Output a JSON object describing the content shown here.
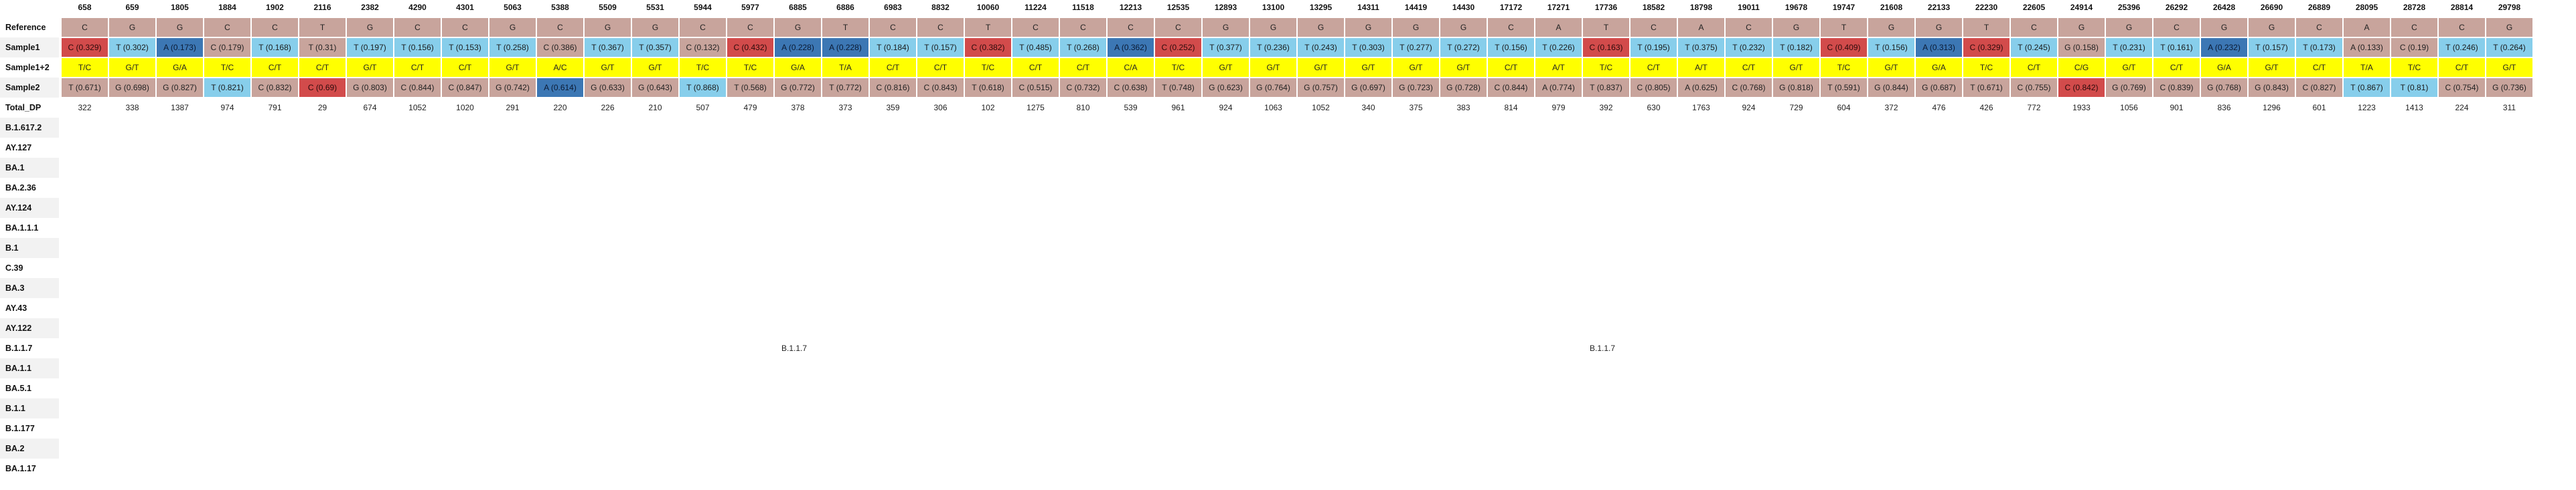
{
  "row_labels": {
    "reference": "Reference",
    "sample1": "Sample1",
    "sample12": "Sample1+2",
    "sample2": "Sample2",
    "total_dp": "Total_DP"
  },
  "lineage_labels": [
    "B.1.617.2",
    "AY.127",
    "BA.1",
    "BA.2.36",
    "AY.124",
    "BA.1.1.1",
    "B.1",
    "C.39",
    "BA.3",
    "AY.43",
    "AY.122",
    "B.1.1.7",
    "BA.1.1",
    "BA.5.1",
    "B.1.1",
    "B.1.177",
    "BA.2",
    "BA.1.17"
  ],
  "lineage_row_annotations": [
    {
      "row": "B.1.1.7",
      "col": 15,
      "text": "B.1.1.7"
    },
    {
      "row": "B.1.1.7",
      "col": 32,
      "text": "B.1.1.7"
    }
  ],
  "palette": {
    "ref_tan": "#c8a49c",
    "light_blue": "#87ceeb",
    "dark_blue": "#3c77b4",
    "red": "#d24b4b",
    "yellow": "#ffff00"
  },
  "columns": [
    {
      "pos": "658",
      "ref": "C",
      "s1": "C (0.329)",
      "s1c": "rd",
      "s12": "T/C",
      "s2": "T (0.671)",
      "s2c": "tan",
      "dp": "322"
    },
    {
      "pos": "659",
      "ref": "G",
      "s1": "T (0.302)",
      "s1c": "lb",
      "s12": "G/T",
      "s2": "G (0.698)",
      "s2c": "tan",
      "dp": "338"
    },
    {
      "pos": "1805",
      "ref": "G",
      "s1": "A (0.173)",
      "s1c": "db",
      "s12": "G/A",
      "s2": "G (0.827)",
      "s2c": "tan",
      "dp": "1387"
    },
    {
      "pos": "1884",
      "ref": "C",
      "s1": "C (0.179)",
      "s1c": "tan",
      "s12": "T/C",
      "s2": "T (0.821)",
      "s2c": "lb",
      "dp": "974"
    },
    {
      "pos": "1902",
      "ref": "C",
      "s1": "T (0.168)",
      "s1c": "lb",
      "s12": "C/T",
      "s2": "C (0.832)",
      "s2c": "tan",
      "dp": "791"
    },
    {
      "pos": "2116",
      "ref": "T",
      "s1": "T (0.31)",
      "s1c": "tan",
      "s12": "C/T",
      "s2": "C (0.69)",
      "s2c": "rd",
      "dp": "29"
    },
    {
      "pos": "2382",
      "ref": "G",
      "s1": "T (0.197)",
      "s1c": "lb",
      "s12": "G/T",
      "s2": "G (0.803)",
      "s2c": "tan",
      "dp": "674"
    },
    {
      "pos": "4290",
      "ref": "C",
      "s1": "T (0.156)",
      "s1c": "lb",
      "s12": "C/T",
      "s2": "C (0.844)",
      "s2c": "tan",
      "dp": "1052"
    },
    {
      "pos": "4301",
      "ref": "C",
      "s1": "T (0.153)",
      "s1c": "lb",
      "s12": "C/T",
      "s2": "C (0.847)",
      "s2c": "tan",
      "dp": "1020"
    },
    {
      "pos": "5063",
      "ref": "G",
      "s1": "T (0.258)",
      "s1c": "lb",
      "s12": "G/T",
      "s2": "G (0.742)",
      "s2c": "tan",
      "dp": "291"
    },
    {
      "pos": "5388",
      "ref": "C",
      "s1": "C (0.386)",
      "s1c": "tan",
      "s12": "A/C",
      "s2": "A (0.614)",
      "s2c": "db",
      "dp": "220"
    },
    {
      "pos": "5509",
      "ref": "G",
      "s1": "T (0.367)",
      "s1c": "lb",
      "s12": "G/T",
      "s2": "G (0.633)",
      "s2c": "tan",
      "dp": "226"
    },
    {
      "pos": "5531",
      "ref": "G",
      "s1": "T (0.357)",
      "s1c": "lb",
      "s12": "G/T",
      "s2": "G (0.643)",
      "s2c": "tan",
      "dp": "210"
    },
    {
      "pos": "5944",
      "ref": "C",
      "s1": "C (0.132)",
      "s1c": "tan",
      "s12": "T/C",
      "s2": "T (0.868)",
      "s2c": "lb",
      "dp": "507"
    },
    {
      "pos": "5977",
      "ref": "C",
      "s1": "C (0.432)",
      "s1c": "rd",
      "s12": "T/C",
      "s2": "T (0.568)",
      "s2c": "tan",
      "dp": "479"
    },
    {
      "pos": "6885",
      "ref": "G",
      "s1": "A (0.228)",
      "s1c": "db",
      "s12": "G/A",
      "s2": "G (0.772)",
      "s2c": "tan",
      "dp": "378"
    },
    {
      "pos": "6886",
      "ref": "T",
      "s1": "A (0.228)",
      "s1c": "db",
      "s12": "T/A",
      "s2": "T (0.772)",
      "s2c": "tan",
      "dp": "373"
    },
    {
      "pos": "6983",
      "ref": "C",
      "s1": "T (0.184)",
      "s1c": "lb",
      "s12": "C/T",
      "s2": "C (0.816)",
      "s2c": "tan",
      "dp": "359"
    },
    {
      "pos": "8832",
      "ref": "C",
      "s1": "T (0.157)",
      "s1c": "lb",
      "s12": "C/T",
      "s2": "C (0.843)",
      "s2c": "tan",
      "dp": "306"
    },
    {
      "pos": "10060",
      "ref": "T",
      "s1": "C (0.382)",
      "s1c": "rd",
      "s12": "T/C",
      "s2": "T (0.618)",
      "s2c": "tan",
      "dp": "102"
    },
    {
      "pos": "11224",
      "ref": "C",
      "s1": "T (0.485)",
      "s1c": "lb",
      "s12": "C/T",
      "s2": "C (0.515)",
      "s2c": "tan",
      "dp": "1275"
    },
    {
      "pos": "11518",
      "ref": "C",
      "s1": "T (0.268)",
      "s1c": "lb",
      "s12": "C/T",
      "s2": "C (0.732)",
      "s2c": "tan",
      "dp": "810"
    },
    {
      "pos": "12213",
      "ref": "C",
      "s1": "A (0.362)",
      "s1c": "db",
      "s12": "C/A",
      "s2": "C (0.638)",
      "s2c": "tan",
      "dp": "539"
    },
    {
      "pos": "12535",
      "ref": "C",
      "s1": "C (0.252)",
      "s1c": "rd",
      "s12": "T/C",
      "s2": "T (0.748)",
      "s2c": "tan",
      "dp": "961"
    },
    {
      "pos": "12893",
      "ref": "G",
      "s1": "T (0.377)",
      "s1c": "lb",
      "s12": "G/T",
      "s2": "G (0.623)",
      "s2c": "tan",
      "dp": "924"
    },
    {
      "pos": "13100",
      "ref": "G",
      "s1": "T (0.236)",
      "s1c": "lb",
      "s12": "G/T",
      "s2": "G (0.764)",
      "s2c": "tan",
      "dp": "1063"
    },
    {
      "pos": "13295",
      "ref": "G",
      "s1": "T (0.243)",
      "s1c": "lb",
      "s12": "G/T",
      "s2": "G (0.757)",
      "s2c": "tan",
      "dp": "1052"
    },
    {
      "pos": "14311",
      "ref": "G",
      "s1": "T (0.303)",
      "s1c": "lb",
      "s12": "G/T",
      "s2": "G (0.697)",
      "s2c": "tan",
      "dp": "340"
    },
    {
      "pos": "14419",
      "ref": "G",
      "s1": "T (0.277)",
      "s1c": "lb",
      "s12": "G/T",
      "s2": "G (0.723)",
      "s2c": "tan",
      "dp": "375"
    },
    {
      "pos": "14430",
      "ref": "G",
      "s1": "T (0.272)",
      "s1c": "lb",
      "s12": "G/T",
      "s2": "G (0.728)",
      "s2c": "tan",
      "dp": "383"
    },
    {
      "pos": "17172",
      "ref": "C",
      "s1": "T (0.156)",
      "s1c": "lb",
      "s12": "C/T",
      "s2": "C (0.844)",
      "s2c": "tan",
      "dp": "814"
    },
    {
      "pos": "17271",
      "ref": "A",
      "s1": "T (0.226)",
      "s1c": "lb",
      "s12": "A/T",
      "s2": "A (0.774)",
      "s2c": "tan",
      "dp": "979"
    },
    {
      "pos": "17736",
      "ref": "T",
      "s1": "C (0.163)",
      "s1c": "rd",
      "s12": "T/C",
      "s2": "T (0.837)",
      "s2c": "tan",
      "dp": "392"
    },
    {
      "pos": "18582",
      "ref": "C",
      "s1": "T (0.195)",
      "s1c": "lb",
      "s12": "C/T",
      "s2": "C (0.805)",
      "s2c": "tan",
      "dp": "630"
    },
    {
      "pos": "18798",
      "ref": "A",
      "s1": "T (0.375)",
      "s1c": "lb",
      "s12": "A/T",
      "s2": "A (0.625)",
      "s2c": "tan",
      "dp": "1763"
    },
    {
      "pos": "19011",
      "ref": "C",
      "s1": "T (0.232)",
      "s1c": "lb",
      "s12": "C/T",
      "s2": "C (0.768)",
      "s2c": "tan",
      "dp": "924"
    },
    {
      "pos": "19678",
      "ref": "G",
      "s1": "T (0.182)",
      "s1c": "lb",
      "s12": "G/T",
      "s2": "G (0.818)",
      "s2c": "tan",
      "dp": "729"
    },
    {
      "pos": "19747",
      "ref": "T",
      "s1": "C (0.409)",
      "s1c": "rd",
      "s12": "T/C",
      "s2": "T (0.591)",
      "s2c": "tan",
      "dp": "604"
    },
    {
      "pos": "21608",
      "ref": "G",
      "s1": "T (0.156)",
      "s1c": "lb",
      "s12": "G/T",
      "s2": "G (0.844)",
      "s2c": "tan",
      "dp": "372"
    },
    {
      "pos": "22133",
      "ref": "G",
      "s1": "A (0.313)",
      "s1c": "db",
      "s12": "G/A",
      "s2": "G (0.687)",
      "s2c": "tan",
      "dp": "476"
    },
    {
      "pos": "22230",
      "ref": "T",
      "s1": "C (0.329)",
      "s1c": "rd",
      "s12": "T/C",
      "s2": "T (0.671)",
      "s2c": "tan",
      "dp": "426"
    },
    {
      "pos": "22605",
      "ref": "C",
      "s1": "T (0.245)",
      "s1c": "lb",
      "s12": "C/T",
      "s2": "C (0.755)",
      "s2c": "tan",
      "dp": "772"
    },
    {
      "pos": "24914",
      "ref": "G",
      "s1": "G (0.158)",
      "s1c": "tan",
      "s12": "C/G",
      "s2": "C (0.842)",
      "s2c": "rd",
      "dp": "1933"
    },
    {
      "pos": "25396",
      "ref": "G",
      "s1": "T (0.231)",
      "s1c": "lb",
      "s12": "G/T",
      "s2": "G (0.769)",
      "s2c": "tan",
      "dp": "1056"
    },
    {
      "pos": "26292",
      "ref": "C",
      "s1": "T (0.161)",
      "s1c": "lb",
      "s12": "C/T",
      "s2": "C (0.839)",
      "s2c": "tan",
      "dp": "901"
    },
    {
      "pos": "26428",
      "ref": "G",
      "s1": "A (0.232)",
      "s1c": "db",
      "s12": "G/A",
      "s2": "G (0.768)",
      "s2c": "tan",
      "dp": "836"
    },
    {
      "pos": "26690",
      "ref": "G",
      "s1": "T (0.157)",
      "s1c": "lb",
      "s12": "G/T",
      "s2": "G (0.843)",
      "s2c": "tan",
      "dp": "1296"
    },
    {
      "pos": "26889",
      "ref": "C",
      "s1": "T (0.173)",
      "s1c": "lb",
      "s12": "C/T",
      "s2": "C (0.827)",
      "s2c": "tan",
      "dp": "601"
    },
    {
      "pos": "28095",
      "ref": "A",
      "s1": "A (0.133)",
      "s1c": "tan",
      "s12": "T/A",
      "s2": "T (0.867)",
      "s2c": "lb",
      "dp": "1223"
    },
    {
      "pos": "28728",
      "ref": "C",
      "s1": "C (0.19)",
      "s1c": "tan",
      "s12": "T/C",
      "s2": "T (0.81)",
      "s2c": "lb",
      "dp": "1413"
    },
    {
      "pos": "28814",
      "ref": "C",
      "s1": "T (0.246)",
      "s1c": "lb",
      "s12": "C/T",
      "s2": "C (0.754)",
      "s2c": "tan",
      "dp": "224"
    },
    {
      "pos": "29798",
      "ref": "G",
      "s1": "T (0.264)",
      "s1c": "lb",
      "s12": "G/T",
      "s2": "G (0.736)",
      "s2c": "tan",
      "dp": "311"
    }
  ]
}
